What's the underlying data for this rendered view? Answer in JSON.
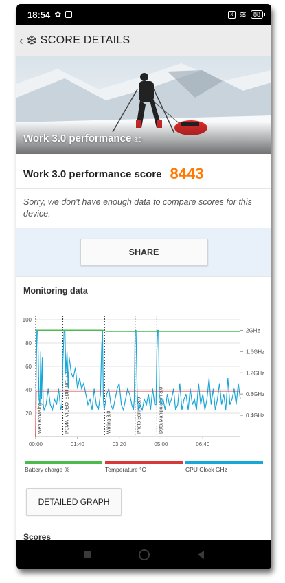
{
  "status_bar": {
    "time": "18:54",
    "battery": "88"
  },
  "app_bar": {
    "title": "SCORE DETAILS"
  },
  "hero": {
    "title": "Work 3.0 performance",
    "version": "3.0"
  },
  "score": {
    "label": "Work 3.0 performance score",
    "value": "8443"
  },
  "compare_note": "Sorry, we don't have enough data to compare scores for this device.",
  "share_label": "SHARE",
  "monitoring": {
    "title": "Monitoring data",
    "legend": [
      {
        "label": "Battery charge %",
        "color": "#4cba4c"
      },
      {
        "label": "Temperature °C",
        "color": "#d83a3a"
      },
      {
        "label": "CPU Clock GHz",
        "color": "#19a7d8"
      }
    ]
  },
  "detailed_graph_label": "DETAILED GRAPH",
  "scores_label": "Scores",
  "chart_data": {
    "type": "line",
    "x_tick_labels": [
      "00:00",
      "01:40",
      "03:20",
      "05:00",
      "06:40"
    ],
    "y_left_ticks": [
      "100",
      "80",
      "60",
      "40",
      "20"
    ],
    "y_right_ticks": [
      "2GHz",
      "1.6GHz",
      "1.2GHz",
      "0.8GHz",
      "0.4GHz"
    ],
    "ylim_left": [
      0,
      100
    ],
    "ylim_right": [
      0,
      2.2
    ],
    "xlim_seconds": [
      0,
      490
    ],
    "phase_markers": [
      {
        "label": "Web Browsing 3.0",
        "t": 0
      },
      {
        "label": "PCMA_VIDEO_EDITING_V3",
        "t": 65
      },
      {
        "label": "Writing 3.0",
        "t": 165
      },
      {
        "label": "Photo Editing 3.0",
        "t": 238
      },
      {
        "label": "Data Manipulation 3.0",
        "t": 290
      }
    ],
    "series": [
      {
        "name": "Battery charge %",
        "axis": "left",
        "x": [
          0,
          160,
          170,
          490
        ],
        "y": [
          91,
          91,
          90,
          90
        ]
      },
      {
        "name": "Temperature °C",
        "axis": "left",
        "x": [
          0,
          1,
          490
        ],
        "y": [
          0,
          39,
          39
        ]
      },
      {
        "name": "CPU Clock GHz",
        "axis": "right",
        "x": [
          0,
          3,
          5,
          8,
          10,
          12,
          14,
          16,
          18,
          20,
          25,
          30,
          35,
          40,
          45,
          50,
          55,
          60,
          63,
          65,
          68,
          70,
          72,
          75,
          78,
          80,
          85,
          90,
          95,
          100,
          105,
          110,
          115,
          120,
          125,
          130,
          135,
          140,
          145,
          150,
          155,
          158,
          160,
          162,
          164,
          166,
          170,
          175,
          180,
          185,
          190,
          195,
          200,
          205,
          210,
          215,
          220,
          225,
          230,
          234,
          236,
          238,
          240,
          243,
          246,
          250,
          255,
          260,
          265,
          270,
          275,
          280,
          285,
          288,
          290,
          292,
          294,
          296,
          300,
          305,
          310,
          315,
          320,
          325,
          330,
          335,
          340,
          345,
          350,
          355,
          360,
          365,
          370,
          375,
          380,
          385,
          390,
          395,
          400,
          405,
          410,
          415,
          420,
          425,
          430,
          435,
          440,
          445,
          450,
          455,
          460,
          465,
          470,
          475,
          480,
          485,
          490
        ],
        "y": [
          0.6,
          2.0,
          2.0,
          0.7,
          0.6,
          1.6,
          0.7,
          1.5,
          0.6,
          0.5,
          0.6,
          0.9,
          0.6,
          0.5,
          0.7,
          0.6,
          0.9,
          0.5,
          0.6,
          1.4,
          2.0,
          2.0,
          1.2,
          1.6,
          0.9,
          1.5,
          1.2,
          1.1,
          1.3,
          0.9,
          1.1,
          0.9,
          1.0,
          0.8,
          0.6,
          0.7,
          0.5,
          0.9,
          0.6,
          0.5,
          0.8,
          1.7,
          2.0,
          0.7,
          0.5,
          0.6,
          0.8,
          0.9,
          0.6,
          0.5,
          0.7,
          0.9,
          1.0,
          0.6,
          0.5,
          0.7,
          0.9,
          0.8,
          0.6,
          0.5,
          0.7,
          2.0,
          2.0,
          0.8,
          0.5,
          0.6,
          0.5,
          0.7,
          0.6,
          0.8,
          0.5,
          0.9,
          0.6,
          0.6,
          1.6,
          2.0,
          2.0,
          0.8,
          0.6,
          0.7,
          0.5,
          0.8,
          0.6,
          0.7,
          0.9,
          0.5,
          0.6,
          1.0,
          0.5,
          0.7,
          0.8,
          0.5,
          0.9,
          0.6,
          0.7,
          0.5,
          1.0,
          0.6,
          0.8,
          0.5,
          0.7,
          1.1,
          0.6,
          0.9,
          0.5,
          0.7,
          1.0,
          0.6,
          0.8,
          0.5,
          1.1,
          0.6,
          0.7,
          0.9,
          0.6,
          1.0,
          0.7
        ]
      }
    ]
  }
}
